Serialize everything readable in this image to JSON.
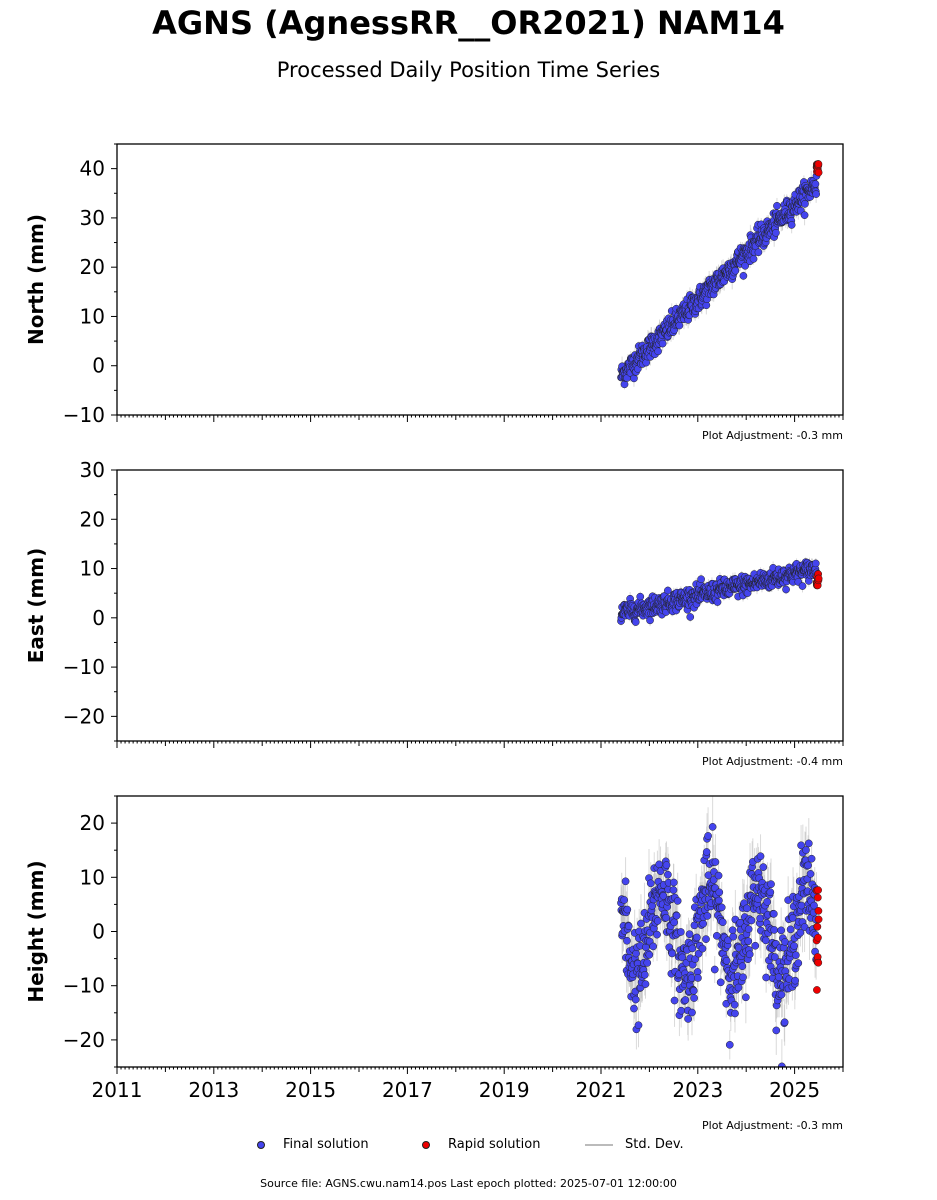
{
  "title": "AGNS (AgnessRR__OR2021) NAM14",
  "subtitle": "Processed Daily Position Time Series",
  "footer": "Source file: AGNS.cwu.nam14.pos  Last epoch plotted: 2025-07-01 12:00:00",
  "legend": {
    "final": "Final solution",
    "rapid": "Rapid solution",
    "stddev": "Std. Dev."
  },
  "colors": {
    "final": "#4444ee",
    "rapid": "#ee0000",
    "stddev": "#bbbbbb"
  },
  "chart_data": [
    {
      "type": "scatter",
      "panel": "north",
      "ylabel": "North (mm)",
      "ylim": [
        -10,
        45
      ],
      "yticks": [
        -10,
        0,
        10,
        20,
        30,
        40
      ],
      "xlim": [
        "2011-01-01",
        "2026-01-01"
      ],
      "xticks": [
        "2011",
        "2013",
        "2015",
        "2017",
        "2019",
        "2021",
        "2023",
        "2025"
      ],
      "adjustment": "Plot Adjustment: -0.3 mm",
      "final_solution": {
        "start_date": "2021-06-01",
        "end_date": "2025-06-15",
        "start_value": -2,
        "end_value": 37,
        "scatter_mm": 1.2,
        "std_dev_mm": 1.5
      },
      "rapid_solution": {
        "dates": [
          "2025-06-16",
          "2025-07-01"
        ],
        "values": [
          39,
          41
        ]
      }
    },
    {
      "type": "scatter",
      "panel": "east",
      "ylabel": "East (mm)",
      "ylim": [
        -25,
        30
      ],
      "yticks": [
        -20,
        -10,
        0,
        10,
        20,
        30
      ],
      "xlim": [
        "2011-01-01",
        "2026-01-01"
      ],
      "xticks": [
        "2011",
        "2013",
        "2015",
        "2017",
        "2019",
        "2021",
        "2023",
        "2025"
      ],
      "adjustment": "Plot Adjustment: -0.4 mm",
      "final_solution": {
        "start_date": "2021-06-01",
        "end_date": "2025-06-15",
        "start_value": 1,
        "end_value": 10,
        "scatter_mm": 1.0,
        "std_dev_mm": 1.0
      },
      "rapid_solution": {
        "dates": [
          "2025-06-16",
          "2025-07-01"
        ],
        "values": [
          6,
          9
        ]
      }
    },
    {
      "type": "scatter",
      "panel": "height",
      "ylabel": "Height (mm)",
      "ylim": [
        -25,
        25
      ],
      "yticks": [
        -20,
        -10,
        0,
        10,
        20
      ],
      "xlim": [
        "2011-01-01",
        "2026-01-01"
      ],
      "xticks": [
        "2011",
        "2013",
        "2015",
        "2017",
        "2019",
        "2021",
        "2023",
        "2025"
      ],
      "adjustment": "Plot Adjustment: -0.3 mm",
      "final_solution": {
        "start_date": "2021-06-01",
        "end_date": "2025-06-15",
        "start_value": 0,
        "end_value": 0,
        "seasonal_amplitude_mm": 8,
        "scatter_mm": 4.5,
        "std_dev_mm": 4
      },
      "rapid_solution": {
        "dates": [
          "2025-06-16",
          "2025-07-01"
        ],
        "values": [
          -11,
          9
        ]
      }
    }
  ]
}
